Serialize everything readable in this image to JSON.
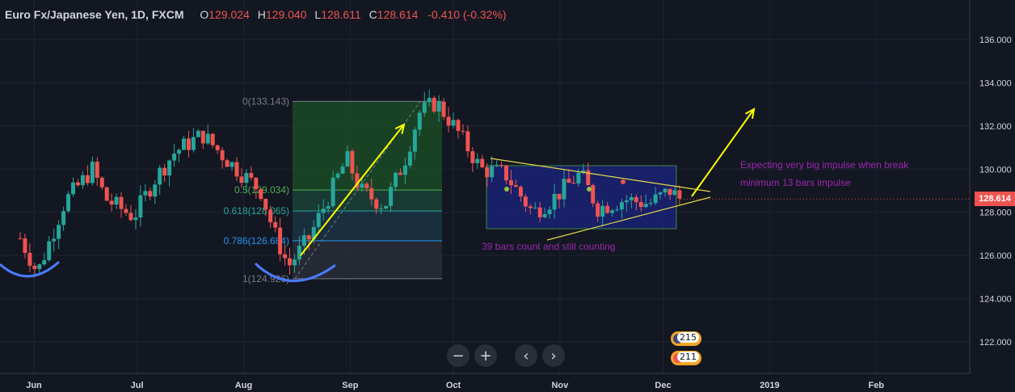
{
  "header": {
    "symbol": "Euro Fx/Japanese Yen, 1D, FXCM",
    "open_label": "O",
    "open": "129.024",
    "high_label": "H",
    "high": "129.040",
    "low_label": "L",
    "low": "128.611",
    "close_label": "C",
    "close": "128.614",
    "change": "-0.410 (-0.32%)"
  },
  "price_axis": {
    "ticks": [
      "136.000",
      "134.000",
      "132.000",
      "130.000",
      "128.000",
      "126.000",
      "124.000",
      "122.000"
    ],
    "current_price": "128.614"
  },
  "time_axis": {
    "ticks": [
      "Jun",
      "Jul",
      "Aug",
      "Sep",
      "Oct",
      "Nov",
      "Dec",
      "2019",
      "Feb"
    ]
  },
  "fib_levels": [
    {
      "label": "0(133.143)",
      "price": 133.143
    },
    {
      "label": "0.5(129.034)",
      "price": 129.034
    },
    {
      "label": "0.618(128.065)",
      "price": 128.065
    },
    {
      "label": "0.786(126.684)",
      "price": 126.684
    },
    {
      "label": "1(124.926)",
      "price": 124.926
    }
  ],
  "annotations": {
    "count_text": "39 bars count and still counting",
    "impulse_line1": "Expecting very big impulse when break",
    "impulse_line2": "minimum 13 bars impulse"
  },
  "badges": [
    {
      "count": "215"
    },
    {
      "count": "211"
    }
  ],
  "colors": {
    "background": "#131722",
    "up": "#26a69a",
    "down": "#ef5350",
    "fib_green": "#4caf50",
    "box_blue": "#1a237e",
    "annotation_purple": "#9c27b0",
    "arrow_yellow": "#ffff00"
  },
  "chart_data": {
    "type": "candlestick",
    "title": "Euro Fx/Japanese Yen, 1D, FXCM",
    "ylim": [
      120.0,
      137.5
    ],
    "x_ticks": [
      "Jun",
      "Jul",
      "Aug",
      "Sep",
      "Oct",
      "Nov",
      "Dec",
      "2019",
      "Feb"
    ],
    "waypoints": [
      {
        "date": "2018-05-28",
        "price": 126.8
      },
      {
        "date": "2018-06-02",
        "price": 125.2
      },
      {
        "date": "2018-06-10",
        "price": 128.5
      },
      {
        "date": "2018-06-18",
        "price": 130.0
      },
      {
        "date": "2018-06-22",
        "price": 128.6
      },
      {
        "date": "2018-06-30",
        "price": 127.8
      },
      {
        "date": "2018-07-06",
        "price": 129.5
      },
      {
        "date": "2018-07-12",
        "price": 130.8
      },
      {
        "date": "2018-07-20",
        "price": 131.6
      },
      {
        "date": "2018-07-28",
        "price": 130.3
      },
      {
        "date": "2018-08-06",
        "price": 129.0
      },
      {
        "date": "2018-08-10",
        "price": 127.0
      },
      {
        "date": "2018-08-14",
        "price": 125.5
      },
      {
        "date": "2018-08-20",
        "price": 126.8
      },
      {
        "date": "2018-08-28",
        "price": 129.5
      },
      {
        "date": "2018-08-31",
        "price": 130.5
      },
      {
        "date": "2018-09-04",
        "price": 129.0
      },
      {
        "date": "2018-09-11",
        "price": 128.3
      },
      {
        "date": "2018-09-17",
        "price": 130.5
      },
      {
        "date": "2018-09-21",
        "price": 132.6
      },
      {
        "date": "2018-09-26",
        "price": 133.1
      },
      {
        "date": "2018-10-02",
        "price": 131.8
      },
      {
        "date": "2018-10-09",
        "price": 130.0
      },
      {
        "date": "2018-10-16",
        "price": 129.8
      },
      {
        "date": "2018-10-24",
        "price": 128.0
      },
      {
        "date": "2018-10-29",
        "price": 128.5
      },
      {
        "date": "2018-11-07",
        "price": 129.8
      },
      {
        "date": "2018-11-12",
        "price": 128.2
      },
      {
        "date": "2018-11-20",
        "price": 128.6
      },
      {
        "date": "2018-11-27",
        "price": 128.4
      },
      {
        "date": "2018-12-03",
        "price": 129.0
      },
      {
        "date": "2018-12-06",
        "price": 128.614
      }
    ]
  }
}
